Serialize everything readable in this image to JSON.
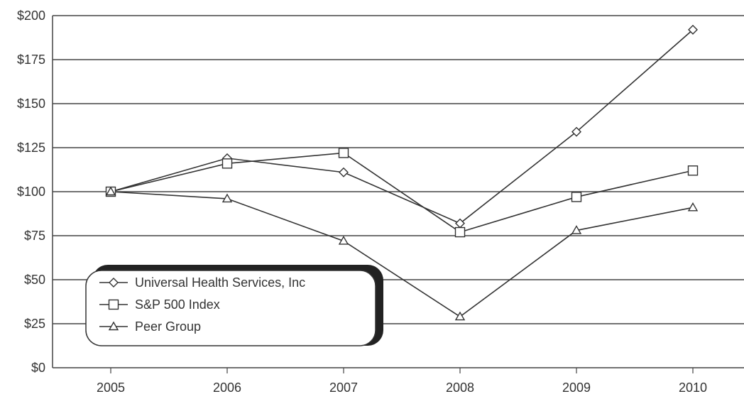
{
  "chart_data": {
    "type": "line",
    "title": "",
    "xlabel": "",
    "ylabel": "",
    "categories": [
      "2005",
      "2006",
      "2007",
      "2008",
      "2009",
      "2010"
    ],
    "ylim": [
      0,
      200
    ],
    "yticks": [
      "$0",
      "$25",
      "$50",
      "$75",
      "$100",
      "$125",
      "$150",
      "$175",
      "$200"
    ],
    "ytick_values": [
      0,
      25,
      50,
      75,
      100,
      125,
      150,
      175,
      200
    ],
    "grid": "horizontal",
    "legend_position": "bottom-left",
    "series": [
      {
        "name": "Universal Health Services, Inc",
        "marker": "diamond",
        "values": [
          100,
          119,
          111,
          82,
          134,
          192
        ]
      },
      {
        "name": "S&P 500 Index",
        "marker": "square",
        "values": [
          100,
          116,
          122,
          77,
          97,
          112
        ]
      },
      {
        "name": "Peer Group",
        "marker": "triangle",
        "values": [
          100,
          96,
          72,
          29,
          78,
          91
        ]
      }
    ],
    "line_color": "#333333"
  }
}
